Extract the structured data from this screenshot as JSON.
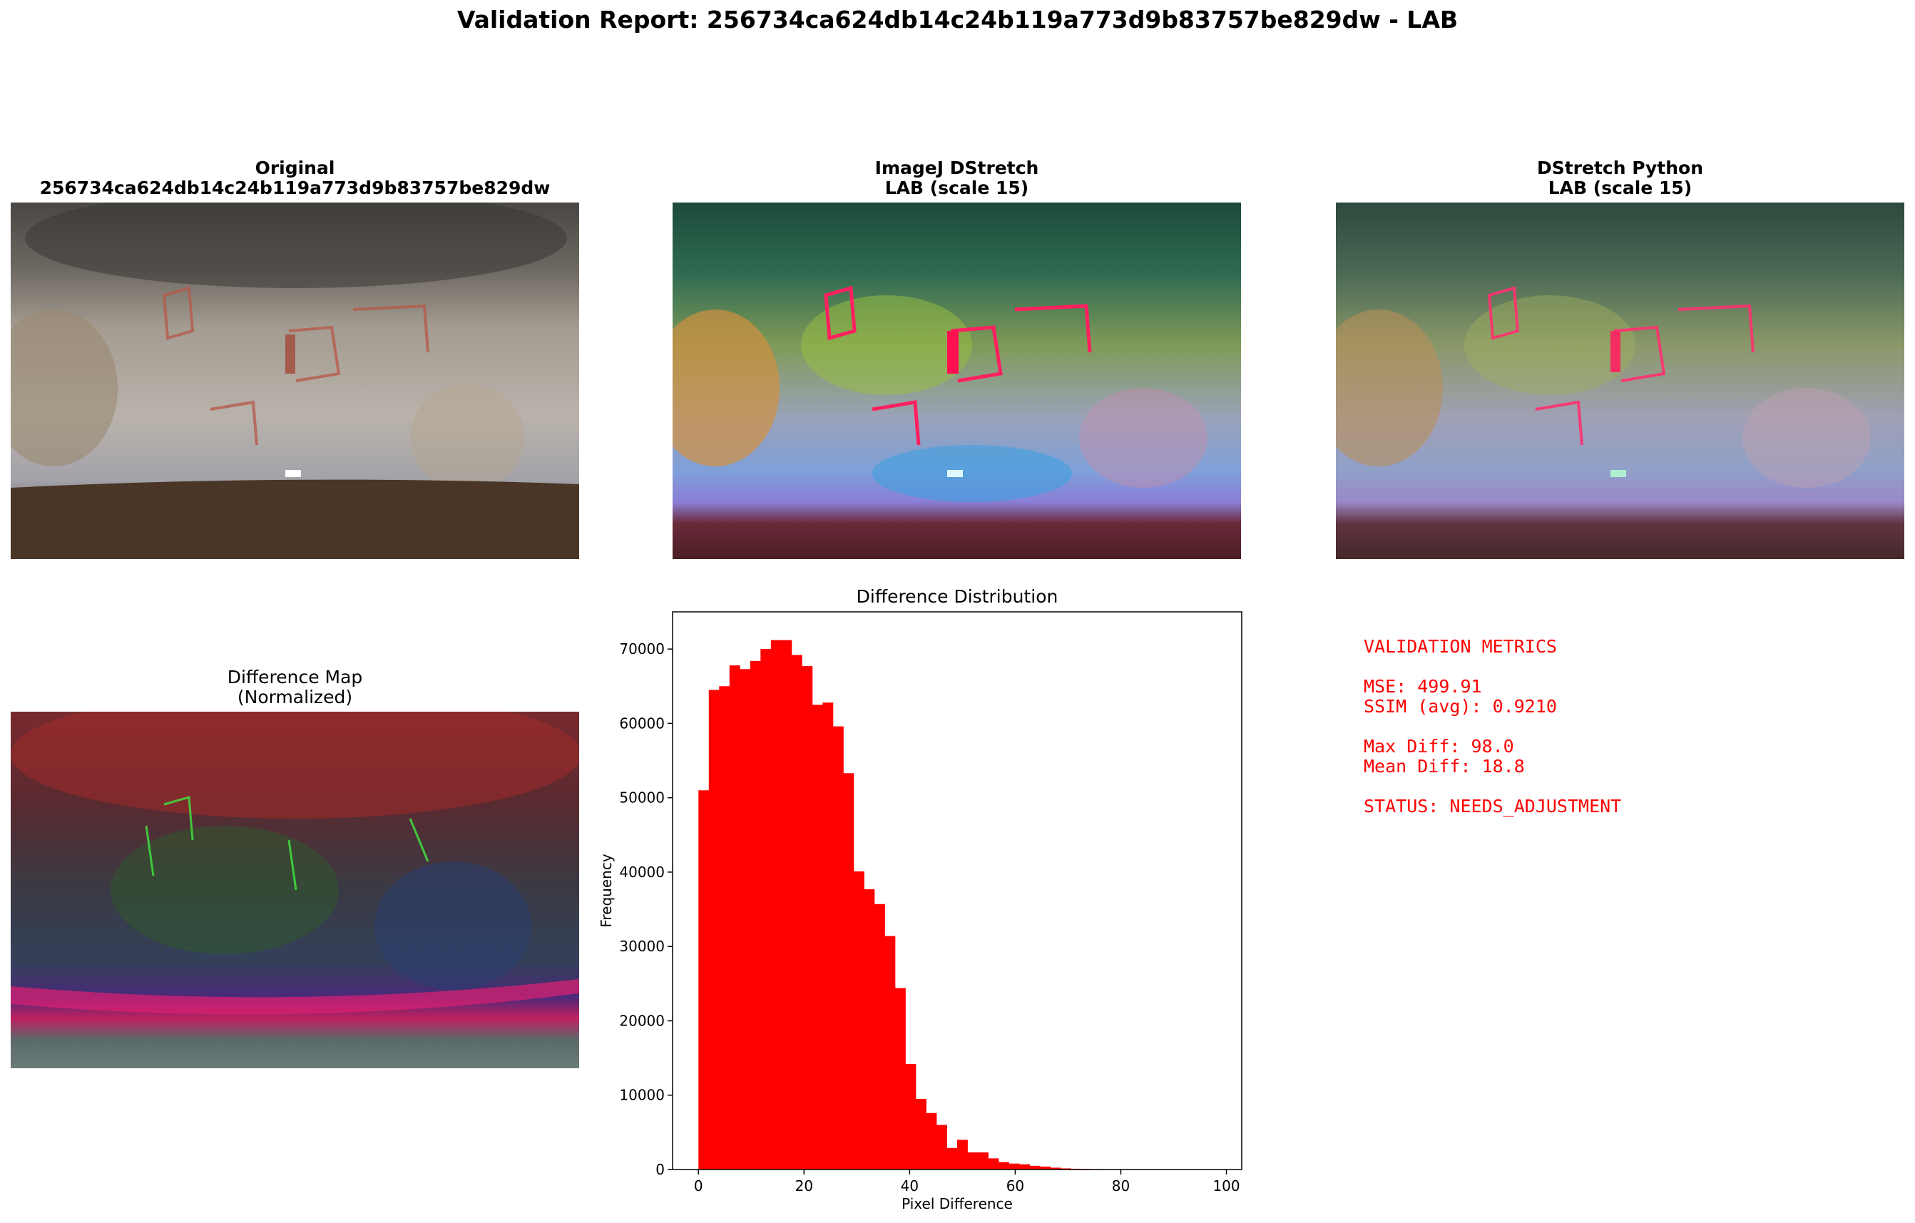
{
  "suptitle": "Validation Report: 256734ca624db14c24b119a773d9b83757be829dw - LAB",
  "panels": {
    "original": {
      "title_line1": "Original",
      "title_line2": "256734ca624db14c24b119a773d9b83757be829dw"
    },
    "imagej": {
      "title_line1": "ImageJ DStretch",
      "title_line2": "LAB (scale 15)"
    },
    "python": {
      "title_line1": "DStretch Python",
      "title_line2": "LAB (scale 15)"
    },
    "diffmap": {
      "title_line1": "Difference Map",
      "title_line2": "(Normalized)"
    }
  },
  "metrics": {
    "heading": "VALIDATION METRICS",
    "mse": "MSE: 499.91",
    "ssim": "SSIM (avg): 0.9210",
    "max_diff": "Max Diff: 98.0",
    "mean_diff": "Mean Diff: 18.8",
    "status": "STATUS: NEEDS_ADJUSTMENT"
  },
  "colors": {
    "bars": "#ff0000",
    "metrics_text": "#ff0000"
  },
  "chart_data": {
    "type": "bar",
    "title": "Difference Distribution",
    "xlabel": "Pixel Difference",
    "ylabel": "Frequency",
    "xlim": [
      -4.9,
      102.9
    ],
    "ylim": [
      0,
      75000
    ],
    "xticks": [
      0,
      20,
      40,
      60,
      80,
      100
    ],
    "yticks": [
      0,
      10000,
      20000,
      30000,
      40000,
      50000,
      60000,
      70000
    ],
    "bin_width": 1.96,
    "bin_start": 0,
    "values": [
      51000,
      64500,
      65000,
      67800,
      67300,
      68400,
      70000,
      71200,
      71200,
      69200,
      67700,
      62500,
      62800,
      59600,
      53300,
      40100,
      37700,
      35700,
      31400,
      24400,
      14200,
      9500,
      7600,
      6000,
      2900,
      4000,
      2300,
      2300,
      1500,
      1000,
      800,
      700,
      500,
      400,
      250,
      150,
      100,
      80,
      60,
      40,
      30,
      20,
      15,
      10,
      8,
      5,
      3,
      2,
      1,
      1
    ]
  }
}
